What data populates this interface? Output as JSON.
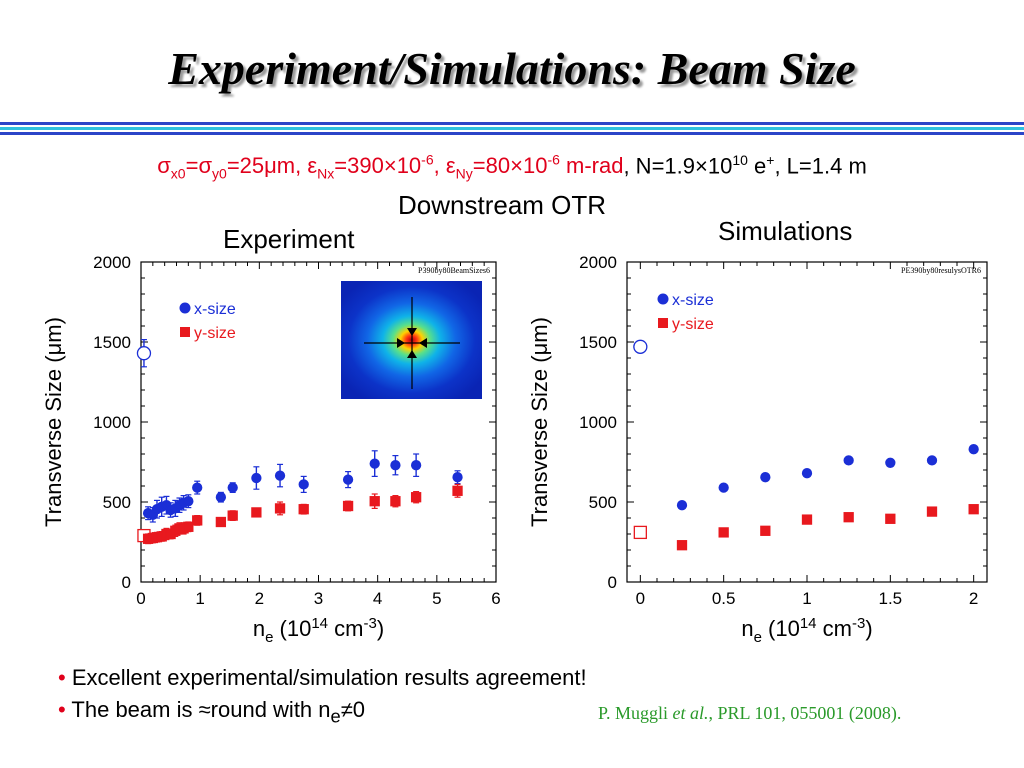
{
  "slide": {
    "title": "Experiment/Simulations: Beam Size",
    "params": {
      "sigma": "σ",
      "sigma_x_sub": "x0",
      "eq1": "=",
      "sigma_y_sub": "y0",
      "size_value": "=25μm, ",
      "eps": "ε",
      "eps_nx_sub": "Nx",
      "eps_nx_value": "=390×10",
      "exp_minus6": "-6",
      "comma": ", ",
      "eps_ny_sub": "Ny",
      "eps_ny_value": "=80×10",
      "unit": " m-rad",
      "n_text": ", N=1.9×10",
      "n_exp": "10",
      "e_text": " e",
      "e_sup": "+",
      "l_text": ", L=1.4 m"
    },
    "downstream_label": "Downstream OTR",
    "experiment_label": "Experiment",
    "simulations_label": "Simulations",
    "bullets": [
      "Excellent experimental/simulation results agreement!",
      "The beam is ≈round with n",
      "e",
      "≠0"
    ],
    "bullet_symbol": "•",
    "citation": {
      "authors": "P. Muggli ",
      "etal": "et al.",
      "ref": ", PRL 101, 055001 (2008)."
    }
  },
  "chart_data": [
    {
      "type": "scatter",
      "title": "Experiment",
      "plot_tag": "P390by80BeamSizes6",
      "xlabel": "n_e (10^14 cm^-3)",
      "ylabel": "Transverse Size (μm)",
      "xlim": [
        0,
        6
      ],
      "ylim": [
        0,
        2000
      ],
      "xticks": [
        0,
        1,
        2,
        3,
        4,
        5,
        6
      ],
      "yticks": [
        0,
        500,
        1000,
        1500,
        2000
      ],
      "legend_position": "top-left",
      "series": [
        {
          "name": "x-size",
          "color": "#1b2fd6",
          "marker": "circle",
          "points": [
            [
              0.05,
              1430,
              85
            ],
            [
              0.12,
              430,
              40
            ],
            [
              0.2,
              420,
              45
            ],
            [
              0.27,
              455,
              55
            ],
            [
              0.35,
              470,
              60
            ],
            [
              0.43,
              480,
              55
            ],
            [
              0.5,
              450,
              45
            ],
            [
              0.58,
              460,
              50
            ],
            [
              0.65,
              480,
              45
            ],
            [
              0.72,
              495,
              45
            ],
            [
              0.8,
              505,
              40
            ],
            [
              0.95,
              590,
              40
            ],
            [
              1.35,
              530,
              30
            ],
            [
              1.55,
              590,
              30
            ],
            [
              1.95,
              650,
              70
            ],
            [
              2.35,
              665,
              70
            ],
            [
              2.75,
              610,
              50
            ],
            [
              3.5,
              640,
              50
            ],
            [
              3.95,
              740,
              80
            ],
            [
              4.3,
              730,
              60
            ],
            [
              4.65,
              730,
              70
            ],
            [
              5.35,
              655,
              40
            ]
          ]
        },
        {
          "name": "y-size",
          "color": "#e8191e",
          "marker": "square",
          "points": [
            [
              0.05,
              290,
              15
            ],
            [
              0.12,
              270,
              30
            ],
            [
              0.2,
              275,
              30
            ],
            [
              0.27,
              280,
              30
            ],
            [
              0.35,
              285,
              30
            ],
            [
              0.43,
              300,
              35
            ],
            [
              0.5,
              300,
              30
            ],
            [
              0.58,
              320,
              35
            ],
            [
              0.65,
              335,
              35
            ],
            [
              0.72,
              335,
              35
            ],
            [
              0.8,
              345,
              30
            ],
            [
              0.95,
              385,
              30
            ],
            [
              1.35,
              375,
              25
            ],
            [
              1.55,
              415,
              30
            ],
            [
              1.95,
              435,
              25
            ],
            [
              2.35,
              460,
              40
            ],
            [
              2.75,
              455,
              30
            ],
            [
              3.5,
              475,
              30
            ],
            [
              3.95,
              505,
              45
            ],
            [
              4.3,
              505,
              35
            ],
            [
              4.65,
              530,
              35
            ],
            [
              5.35,
              570,
              40
            ]
          ]
        }
      ],
      "open_markers": [
        {
          "series": "x-size",
          "x": 0.05,
          "y": 1430
        },
        {
          "series": "y-size",
          "x": 0.05,
          "y": 290
        }
      ]
    },
    {
      "type": "scatter",
      "title": "Simulations",
      "plot_tag": "PE390by80resulysOTR6",
      "xlabel": "n_e (10^14 cm^-3)",
      "ylabel": "Transverse Size (μm)",
      "xlim": [
        -0.08,
        2.08
      ],
      "ylim": [
        0,
        2000
      ],
      "xticks": [
        0,
        0.5,
        1,
        1.5,
        2
      ],
      "yticks": [
        0,
        500,
        1000,
        1500,
        2000
      ],
      "legend_position": "top-left",
      "series": [
        {
          "name": "x-size",
          "color": "#1b2fd6",
          "marker": "circle",
          "points": [
            [
              0,
              1470
            ],
            [
              0.25,
              480
            ],
            [
              0.5,
              590
            ],
            [
              0.75,
              655
            ],
            [
              1.0,
              680
            ],
            [
              1.25,
              760
            ],
            [
              1.5,
              745
            ],
            [
              1.75,
              760
            ],
            [
              2.0,
              830
            ]
          ]
        },
        {
          "name": "y-size",
          "color": "#e8191e",
          "marker": "square",
          "points": [
            [
              0,
              310
            ],
            [
              0.25,
              230
            ],
            [
              0.5,
              310
            ],
            [
              0.75,
              320
            ],
            [
              1.0,
              390
            ],
            [
              1.25,
              405
            ],
            [
              1.5,
              395
            ],
            [
              1.75,
              440
            ],
            [
              2.0,
              455
            ]
          ]
        }
      ],
      "open_markers": [
        {
          "series": "x-size",
          "x": 0,
          "y": 1470
        },
        {
          "series": "y-size",
          "x": 0,
          "y": 310
        }
      ]
    }
  ],
  "otr_image": {
    "caption": "beam spot image"
  }
}
